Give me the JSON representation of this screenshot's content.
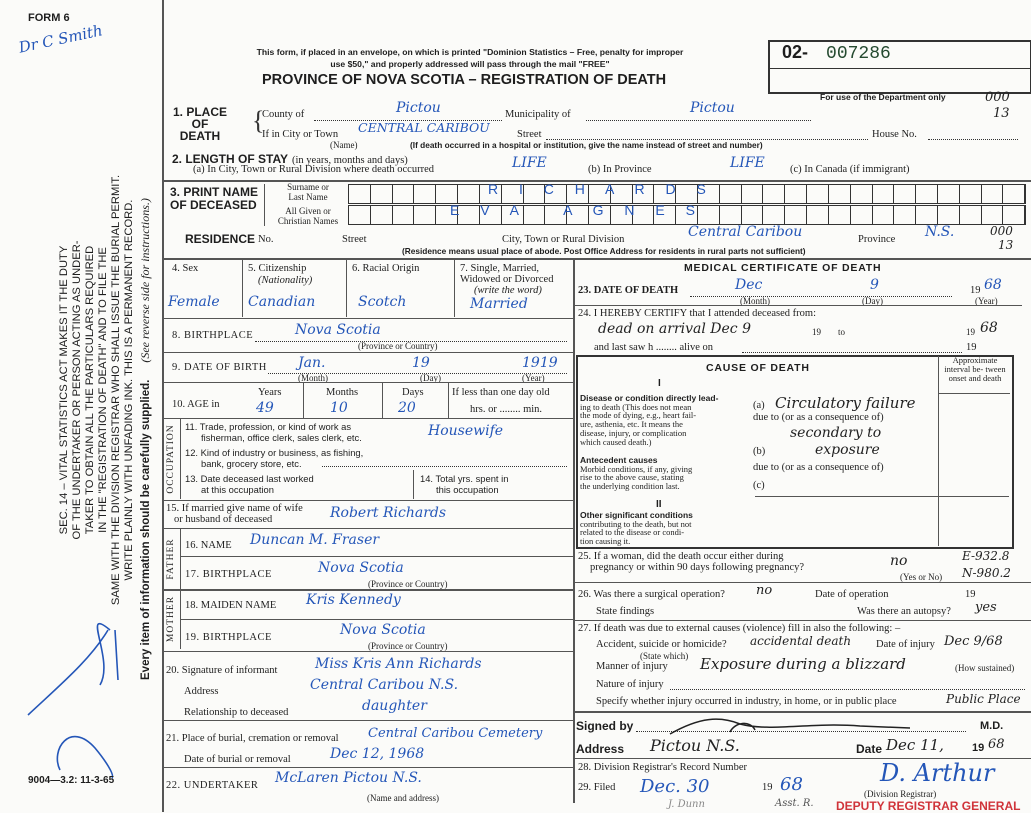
{
  "margin": {
    "form_no": "FORM 6",
    "note_hw": "Dr C Smith",
    "statute": [
      "SEC. 14 – VITAL STATISTICS ACT MAKES IT THE DUTY",
      "OF THE UNDERTAKER OR PERSON ACTING AS UNDER-",
      "TAKER TO OBTAIN ALL THE PARTICULARS REQUIRED",
      "IN THE \"REGISTRATION OF DEATH\" AND TO FILE THE",
      "SAME WITH THE DIVISION REGISTRAR WHO SHALL ISSUE THE BURIAL PERMIT.",
      "WRITE PLAINLY WITH UNFADING INK. THIS IS A PERMANENT RECORD."
    ],
    "every_item": "Every item of information should be carefully supplied.",
    "see_reverse": "(See reverse side for instructions.)",
    "print_code": "9004—3.2: 11-3-65"
  },
  "header": {
    "notice_1": "This form, if placed in an envelope, on which is printed \"Dominion Statistics – Free, penalty for improper",
    "notice_2": "use $50,\" and properly addressed will pass through the mail \"FREE\"",
    "title": "PROVINCE OF NOVA SCOTIA – REGISTRATION OF DEATH",
    "reg_prefix": "02-",
    "reg_number": "007286",
    "dept_only": "For use of the Department only",
    "dept_code_1": "000",
    "dept_code_2": "13"
  },
  "s1": {
    "label_1": "1. PLACE",
    "label_2": "OF",
    "label_3": "DEATH",
    "county_label": "County of",
    "county": "Pictou",
    "muni_label": "Municipality of",
    "muni": "Pictou",
    "city_label": "If in City or Town",
    "city": "CENTRAL CARIBOU",
    "name_note": "(Name)",
    "street_label": "Street",
    "house_label": "House No.",
    "hospital_note": "(If death occurred in a hospital or institution, give the name instead of street and number)"
  },
  "s2": {
    "label": "2. LENGTH OF STAY",
    "label_note": "(in years, months and days)",
    "a_label": "(a) In City, Town or Rural Division where death occurred",
    "a": "LIFE",
    "b_label": "(b) In Province",
    "b": "LIFE",
    "c_label": "(c) In Canada (if immigrant)"
  },
  "s3": {
    "label_1": "3. PRINT NAME",
    "label_2": "OF DECEASED",
    "surname_label_1": "Surname or",
    "surname_label_2": "Last Name",
    "surname": "R I C H A R D S",
    "given_label_1": "All Given or",
    "given_label_2": "Christian Names",
    "given": "E V A   A G N E S"
  },
  "residence": {
    "label": "RESIDENCE",
    "no_label": "No.",
    "street_label": "Street",
    "city_label": "City, Town or Rural Division",
    "city": "Central Caribou",
    "prov_label": "Province",
    "prov": "N.S.",
    "code_1": "000",
    "code_2": "13",
    "note": "(Residence means usual place of abode. Post Office Address for residents in rural parts not sufficient)"
  },
  "personal": {
    "sex_label": "4. Sex",
    "sex": "Female",
    "cit_label": "5. Citizenship",
    "cit_note": "(Nationality)",
    "cit": "Canadian",
    "race_label": "6. Racial Origin",
    "race": "Scotch",
    "marital_label_1": "7. Single, Married,",
    "marital_label_2": "Widowed or Divorced",
    "marital_label_3": "(write the word)",
    "marital": "Married",
    "birthplace_label": "8. BIRTHPLACE",
    "birthplace": "Nova Scotia",
    "prov_note": "(Province or Country)",
    "dob_label": "9. DATE OF BIRTH",
    "dob_month": "Jan.",
    "dob_day": "19",
    "dob_year": "1919",
    "month_note": "(Month)",
    "day_note": "(Day)",
    "year_note": "(Year)",
    "age_label": "10. AGE in",
    "years_label": "Years",
    "years": "49",
    "months_label": "Months",
    "months": "10",
    "days_label": "Days",
    "days": "20",
    "less_day": "If less than one day old",
    "hrs_min": "hrs. or ........ min."
  },
  "occupation": {
    "side": "OCCUPATION",
    "q11_1": "11. Trade, profession, or kind of work as",
    "q11_2": "fisherman, office clerk, sales clerk, etc.",
    "q11": "Housewife",
    "q12_1": "12. Kind of industry or business, as fishing,",
    "q12_2": "bank, grocery store, etc.",
    "q13_1": "13. Date deceased last worked",
    "q13_2": "at this occupation",
    "q14_1": "14. Total yrs. spent in",
    "q14_2": "this occupation"
  },
  "spouse": {
    "label_1": "15. If married give name of wife",
    "label_2": "or husband of deceased",
    "value": "Robert Richards"
  },
  "father": {
    "side": "FATHER",
    "name_label": "16. NAME",
    "name": "Duncan M. Fraser",
    "bp_label": "17. BIRTHPLACE",
    "bp": "Nova Scotia"
  },
  "mother": {
    "side": "MOTHER",
    "name_label": "18. MAIDEN NAME",
    "name": "Kris Kennedy",
    "bp_label": "19. BIRTHPLACE",
    "bp": "Nova Scotia"
  },
  "informant": {
    "sig_label": "20. Signature of informant",
    "sig": "Miss Kris Ann Richards",
    "addr_label": "Address",
    "addr": "Central Caribou N.S.",
    "rel_label": "Relationship to deceased",
    "rel": "daughter"
  },
  "burial": {
    "place_label": "21. Place of burial, cremation or removal",
    "place": "Central Caribou Cemetery",
    "date_label": "Date of burial or removal",
    "date": "Dec 12, 1968"
  },
  "undertaker": {
    "label": "22. UNDERTAKER",
    "value": "McLaren Pictou N.S.",
    "note": "(Name and address)"
  },
  "medical": {
    "title": "MEDICAL CERTIFICATE OF DEATH",
    "dod_label": "23. DATE OF DEATH",
    "dod_month": "Dec",
    "dod_day": "9",
    "dod_year_pre": "19",
    "dod_year": "68",
    "certify_label": "24. I HEREBY CERTIFY that I attended deceased from:",
    "certify": "dead on arrival Dec 9",
    "certify_year": "68",
    "nineteen": "19",
    "to": "to",
    "lastsaw_label": "and last saw h ........ alive on"
  },
  "cause": {
    "title": "CAUSE OF DEATH",
    "roman_1": "I",
    "roman_2": "II",
    "interval": "Approximate interval be- tween onset and death",
    "direct_1": "Disease or condition directly lead-",
    "direct_2": "ing to death (This does not mean",
    "direct_3": "the mode of dying, e.g., heart fail-",
    "direct_4": "ure, asthenia, etc. It means the",
    "direct_5": "disease, injury, or complication",
    "direct_6": "which caused death.)",
    "a_label": "(a)",
    "a": "Circulatory failure",
    "due_to": "due to (or as a consequence of)",
    "a2": "secondary to",
    "b_label": "(b)",
    "b": "exposure",
    "c_label": "(c)",
    "ante_1": "Antecedent causes",
    "ante_2": "Morbid conditions, if any, giving",
    "ante_3": "rise to the above cause, stating",
    "ante_4": "the underlying condition last.",
    "other_1": "Other significant conditions",
    "other_2": "contributing to the death, but not",
    "other_3": "related to the disease or condi-",
    "other_4": "tion causing it."
  },
  "q25": {
    "label_1": "25. If a woman, did the death occur either during",
    "label_2": "pregnancy or within 90 days following pregnancy?",
    "value": "no",
    "note": "(Yes or No)",
    "code_1": "E-932.8",
    "code_2": "N-980.2"
  },
  "q26": {
    "label": "26. Was there a surgical operation?",
    "value": "no",
    "date_label": "Date of operation",
    "nineteen": "19",
    "findings_label": "State findings",
    "autopsy_label": "Was there an autopsy?",
    "autopsy": "yes"
  },
  "q27": {
    "label": "27. If death was due to external causes (violence) fill in also the following: –",
    "acc_label": "Accident, suicide or homicide?",
    "acc": "accidental death",
    "state_which": "(State which)",
    "inj_date_label": "Date of injury",
    "inj_date": "Dec 9/68",
    "manner_label": "Manner of injury",
    "manner": "Exposure during a blizzard",
    "how": "(How sustained)",
    "nature_label": "Nature of injury",
    "where_label": "Specify whether injury occurred in industry, in home, or in public place",
    "where": "Public Place"
  },
  "signed": {
    "label": "Signed by",
    "md": "M.D.",
    "sig": "signature",
    "addr_label": "Address",
    "addr": "Pictou N.S.",
    "date_label": "Date",
    "date": "Dec 11,",
    "year_pre": "19",
    "year": "68"
  },
  "filing": {
    "q28": "28. Division Registrar's Record Number",
    "q29": "29. Filed",
    "filed": "Dec. 30",
    "nineteen": "19",
    "year": "68",
    "registrar_note": "(Division Registrar)",
    "registrar_sig": "D. Arthur",
    "below_1": "J. Dunn",
    "below_2": "Asst. R.",
    "stamp": "DEPUTY REGISTRAR GENERAL"
  },
  "colors": {
    "ink": "#2456b8",
    "stamp": "#d0343a",
    "print": "#1e1e1e"
  }
}
